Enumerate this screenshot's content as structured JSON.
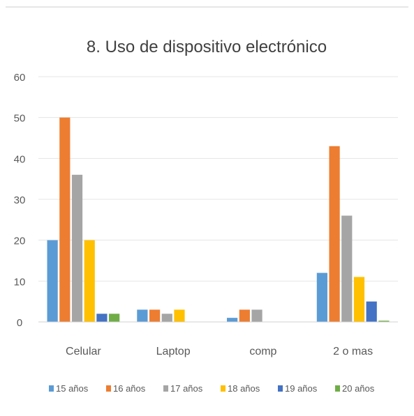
{
  "chart_data": {
    "type": "bar",
    "title": "8. Uso de dispositivo electrónico",
    "xlabel": "",
    "ylabel": "",
    "ylim": [
      0,
      60
    ],
    "yticks": [
      0,
      10,
      20,
      30,
      40,
      50,
      60
    ],
    "grid": true,
    "legend_position": "bottom",
    "categories": [
      "Celular",
      "Laptop",
      "comp",
      "2 o mas"
    ],
    "series": [
      {
        "name": "15 años",
        "color": "#5b9bd5",
        "values": [
          20,
          3,
          1,
          12
        ]
      },
      {
        "name": "16 años",
        "color": "#ed7d31",
        "values": [
          50,
          3,
          3,
          43
        ]
      },
      {
        "name": "17 años",
        "color": "#a5a5a5",
        "values": [
          36,
          2,
          3,
          26
        ]
      },
      {
        "name": "18 años",
        "color": "#ffc000",
        "values": [
          20,
          3,
          0,
          11
        ]
      },
      {
        "name": "19 años",
        "color": "#4472c4",
        "values": [
          2,
          0,
          0,
          5
        ]
      },
      {
        "name": "20 años",
        "color": "#70ad47",
        "values": [
          2,
          0,
          0,
          0.3
        ]
      }
    ]
  }
}
